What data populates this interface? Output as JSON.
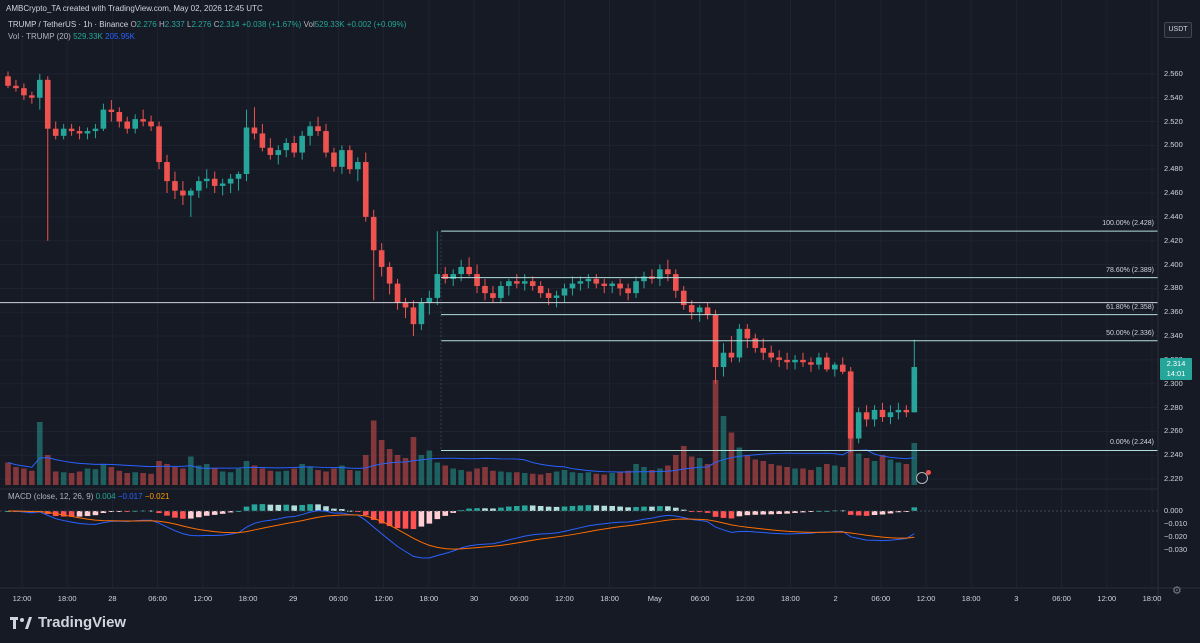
{
  "header": {
    "published_by": "AMBCrypto_TA created with TradingView.com, May 02, 2026 12:45 UTC",
    "symbol": "TRUMP / TetherUS · 1h · Binance",
    "ohlc": {
      "o_label": "O",
      "o": "2.276",
      "h_label": "H",
      "h": "2.337",
      "l_label": "L",
      "l": "2.276",
      "c_label": "C",
      "c": "2.314",
      "change": "+0.038 (+1.67%)"
    },
    "vol_label": "Vol",
    "vol_value": "529.33K",
    "vol_change": "+0.002 (+0.09%)",
    "vol_indicator": "Vol · TRUMP (20)",
    "vol_val1": "529.33K",
    "vol_val2": "205.95K",
    "macd_label": "MACD (close, 12, 26, 9)",
    "macd_v1": "0.004",
    "macd_v2": "−0.017",
    "macd_v3": "−0.021"
  },
  "currency_badge": "USDT",
  "current_price": {
    "value": "2.314",
    "countdown": "14:01"
  },
  "price_axis": [
    "2.560",
    "2.540",
    "2.520",
    "2.500",
    "2.480",
    "2.460",
    "2.440",
    "2.420",
    "2.400",
    "2.380",
    "2.360",
    "2.340",
    "2.320",
    "2.300",
    "2.280",
    "2.260",
    "2.240",
    "2.220"
  ],
  "macd_axis": [
    "0.000",
    "−0.010",
    "−0.020",
    "−0.030"
  ],
  "time_axis": [
    "12:00",
    "18:00",
    "28",
    "06:00",
    "12:00",
    "18:00",
    "29",
    "06:00",
    "12:00",
    "18:00",
    "30",
    "06:00",
    "12:00",
    "18:00",
    "May",
    "06:00",
    "12:00",
    "18:00",
    "2",
    "06:00",
    "12:00",
    "18:00",
    "3",
    "06:00",
    "12:00",
    "18:00"
  ],
  "fib_levels": [
    {
      "label": "100.00% (2.428)",
      "price": 2.428
    },
    {
      "label": "78.60% (2.389)",
      "price": 2.389
    },
    {
      "label": "61.80% (2.358)",
      "price": 2.358
    },
    {
      "label": "50.00% (2.336)",
      "price": 2.336
    },
    {
      "label": "0.00% (2.244)",
      "price": 2.244
    }
  ],
  "horizontal_line_price": 2.368,
  "brand": "TradingView",
  "colors": {
    "up": "#26a69a",
    "down": "#ef5350",
    "fib": "#b2dfdb",
    "macd": "#2962ff",
    "signal": "#ff6d00",
    "bg": "#161a25"
  },
  "chart_data": {
    "type": "candlestick",
    "symbol": "TRUMP/USDT",
    "timeframe": "1h",
    "ylim": [
      2.215,
      2.575
    ],
    "candles": [
      [
        2.558,
        2.562,
        2.548,
        2.55
      ],
      [
        2.55,
        2.555,
        2.545,
        2.548
      ],
      [
        2.548,
        2.552,
        2.538,
        2.542
      ],
      [
        2.542,
        2.545,
        2.535,
        2.54
      ],
      [
        2.54,
        2.56,
        2.53,
        2.555
      ],
      [
        2.555,
        2.558,
        2.42,
        2.514
      ],
      [
        2.514,
        2.52,
        2.505,
        2.508
      ],
      [
        2.508,
        2.518,
        2.505,
        2.514
      ],
      [
        2.514,
        2.518,
        2.508,
        2.512
      ],
      [
        2.512,
        2.516,
        2.505,
        2.51
      ],
      [
        2.51,
        2.515,
        2.505,
        2.512
      ],
      [
        2.512,
        2.518,
        2.506,
        2.514
      ],
      [
        2.514,
        2.535,
        2.512,
        2.53
      ],
      [
        2.53,
        2.538,
        2.52,
        2.528
      ],
      [
        2.528,
        2.532,
        2.515,
        2.52
      ],
      [
        2.52,
        2.524,
        2.51,
        2.514
      ],
      [
        2.514,
        2.526,
        2.51,
        2.522
      ],
      [
        2.522,
        2.53,
        2.516,
        2.52
      ],
      [
        2.52,
        2.525,
        2.512,
        2.516
      ],
      [
        2.516,
        2.52,
        2.48,
        2.486
      ],
      [
        2.486,
        2.492,
        2.46,
        2.47
      ],
      [
        2.47,
        2.478,
        2.455,
        2.462
      ],
      [
        2.462,
        2.47,
        2.45,
        2.458
      ],
      [
        2.458,
        2.464,
        2.44,
        2.462
      ],
      [
        2.462,
        2.474,
        2.456,
        2.47
      ],
      [
        2.47,
        2.48,
        2.464,
        2.472
      ],
      [
        2.472,
        2.478,
        2.46,
        2.466
      ],
      [
        2.466,
        2.472,
        2.458,
        2.468
      ],
      [
        2.468,
        2.476,
        2.46,
        2.472
      ],
      [
        2.472,
        2.478,
        2.462,
        2.476
      ],
      [
        2.476,
        2.53,
        2.47,
        2.515
      ],
      [
        2.515,
        2.532,
        2.505,
        2.51
      ],
      [
        2.51,
        2.518,
        2.495,
        2.498
      ],
      [
        2.498,
        2.506,
        2.488,
        2.492
      ],
      [
        2.492,
        2.5,
        2.484,
        2.496
      ],
      [
        2.496,
        2.506,
        2.49,
        2.502
      ],
      [
        2.502,
        2.508,
        2.49,
        2.494
      ],
      [
        2.494,
        2.512,
        2.488,
        2.508
      ],
      [
        2.508,
        2.52,
        2.5,
        2.516
      ],
      [
        2.516,
        2.524,
        2.508,
        2.512
      ],
      [
        2.512,
        2.518,
        2.49,
        2.494
      ],
      [
        2.494,
        2.498,
        2.478,
        2.482
      ],
      [
        2.482,
        2.5,
        2.476,
        2.496
      ],
      [
        2.496,
        2.5,
        2.476,
        2.48
      ],
      [
        2.48,
        2.49,
        2.47,
        2.486
      ],
      [
        2.486,
        2.494,
        2.436,
        2.44
      ],
      [
        2.44,
        2.446,
        2.37,
        2.412
      ],
      [
        2.412,
        2.418,
        2.39,
        2.398
      ],
      [
        2.398,
        2.402,
        2.375,
        2.384
      ],
      [
        2.384,
        2.388,
        2.362,
        2.368
      ],
      [
        2.368,
        2.372,
        2.355,
        2.364
      ],
      [
        2.364,
        2.37,
        2.34,
        2.35
      ],
      [
        2.35,
        2.372,
        2.345,
        2.368
      ],
      [
        2.368,
        2.378,
        2.358,
        2.372
      ],
      [
        2.372,
        2.428,
        2.366,
        2.392
      ],
      [
        2.392,
        2.398,
        2.384,
        2.388
      ],
      [
        2.388,
        2.396,
        2.382,
        2.392
      ],
      [
        2.392,
        2.404,
        2.386,
        2.398
      ],
      [
        2.398,
        2.406,
        2.39,
        2.392
      ],
      [
        2.392,
        2.4,
        2.376,
        2.382
      ],
      [
        2.382,
        2.388,
        2.37,
        2.376
      ],
      [
        2.376,
        2.382,
        2.368,
        2.372
      ],
      [
        2.372,
        2.386,
        2.368,
        2.382
      ],
      [
        2.382,
        2.388,
        2.374,
        2.386
      ],
      [
        2.386,
        2.392,
        2.38,
        2.384
      ],
      [
        2.384,
        2.392,
        2.378,
        2.386
      ],
      [
        2.386,
        2.39,
        2.378,
        2.382
      ],
      [
        2.382,
        2.386,
        2.372,
        2.376
      ],
      [
        2.376,
        2.38,
        2.366,
        2.372
      ],
      [
        2.372,
        2.378,
        2.364,
        2.374
      ],
      [
        2.374,
        2.384,
        2.368,
        2.38
      ],
      [
        2.38,
        2.39,
        2.374,
        2.384
      ],
      [
        2.384,
        2.39,
        2.378,
        2.386
      ],
      [
        2.386,
        2.392,
        2.38,
        2.388
      ],
      [
        2.388,
        2.392,
        2.38,
        2.384
      ],
      [
        2.384,
        2.388,
        2.376,
        2.382
      ],
      [
        2.382,
        2.386,
        2.376,
        2.384
      ],
      [
        2.384,
        2.388,
        2.374,
        2.38
      ],
      [
        2.38,
        2.384,
        2.37,
        2.376
      ],
      [
        2.376,
        2.39,
        2.372,
        2.386
      ],
      [
        2.386,
        2.394,
        2.38,
        2.39
      ],
      [
        2.39,
        2.396,
        2.384,
        2.388
      ],
      [
        2.388,
        2.4,
        2.382,
        2.396
      ],
      [
        2.396,
        2.404,
        2.386,
        2.392
      ],
      [
        2.392,
        2.396,
        2.372,
        2.378
      ],
      [
        2.378,
        2.382,
        2.362,
        2.366
      ],
      [
        2.366,
        2.37,
        2.354,
        2.36
      ],
      [
        2.36,
        2.366,
        2.352,
        2.364
      ],
      [
        2.364,
        2.368,
        2.354,
        2.358
      ],
      [
        2.358,
        2.362,
        2.3,
        2.314
      ],
      [
        2.314,
        2.334,
        2.306,
        2.326
      ],
      [
        2.326,
        2.34,
        2.318,
        2.322
      ],
      [
        2.322,
        2.35,
        2.318,
        2.346
      ],
      [
        2.346,
        2.35,
        2.33,
        2.338
      ],
      [
        2.338,
        2.342,
        2.326,
        2.33
      ],
      [
        2.33,
        2.338,
        2.32,
        2.326
      ],
      [
        2.326,
        2.332,
        2.318,
        2.322
      ],
      [
        2.322,
        2.328,
        2.314,
        2.32
      ],
      [
        2.32,
        2.326,
        2.312,
        2.318
      ],
      [
        2.318,
        2.324,
        2.312,
        2.32
      ],
      [
        2.32,
        2.326,
        2.314,
        2.318
      ],
      [
        2.318,
        2.322,
        2.31,
        2.316
      ],
      [
        2.316,
        2.326,
        2.312,
        2.322
      ],
      [
        2.322,
        2.326,
        2.31,
        2.312
      ],
      [
        2.312,
        2.318,
        2.306,
        2.316
      ],
      [
        2.316,
        2.322,
        2.308,
        2.31
      ],
      [
        2.31,
        2.314,
        2.242,
        2.254
      ],
      [
        2.254,
        2.28,
        2.25,
        2.276
      ],
      [
        2.276,
        2.282,
        2.264,
        2.27
      ],
      [
        2.27,
        2.282,
        2.264,
        2.278
      ],
      [
        2.278,
        2.284,
        2.268,
        2.272
      ],
      [
        2.272,
        2.282,
        2.266,
        2.276
      ],
      [
        2.276,
        2.284,
        2.27,
        2.278
      ],
      [
        2.278,
        2.282,
        2.272,
        2.276
      ],
      [
        2.276,
        2.337,
        2.276,
        2.314
      ]
    ],
    "volume": [
      150,
      120,
      110,
      95,
      420,
      200,
      90,
      85,
      80,
      90,
      110,
      105,
      140,
      120,
      95,
      80,
      85,
      80,
      75,
      160,
      140,
      120,
      110,
      190,
      130,
      140,
      110,
      90,
      85,
      110,
      160,
      130,
      110,
      95,
      90,
      95,
      110,
      140,
      120,
      100,
      90,
      110,
      130,
      100,
      95,
      200,
      430,
      300,
      240,
      200,
      180,
      320,
      200,
      230,
      150,
      130,
      110,
      100,
      90,
      110,
      120,
      95,
      90,
      85,
      85,
      80,
      75,
      70,
      80,
      90,
      100,
      85,
      80,
      85,
      75,
      70,
      80,
      90,
      95,
      140,
      120,
      100,
      110,
      130,
      200,
      260,
      190,
      180,
      140,
      700,
      460,
      350,
      250,
      200,
      170,
      160,
      140,
      130,
      120,
      110,
      110,
      100,
      120,
      140,
      130,
      120,
      760,
      210,
      180,
      160,
      200,
      170,
      150,
      140,
      280
    ]
  }
}
